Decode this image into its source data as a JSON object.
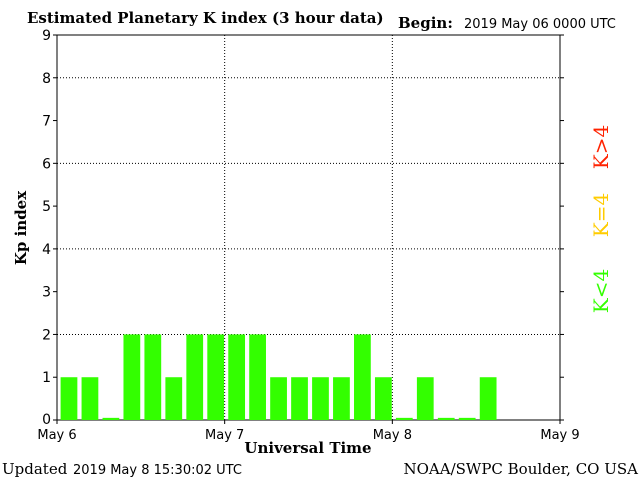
{
  "header": {
    "title": "Estimated Planetary K index (3 hour data)",
    "begin_label": "Begin:",
    "begin_value": "2019 May 06 0000 UTC"
  },
  "footer": {
    "updated_label": "Updated",
    "updated_value": "2019 May  8 15:30:02 UTC",
    "credit": "NOAA/SWPC Boulder, CO USA"
  },
  "legend": {
    "high_label": "K>4",
    "mid_label": "K=4",
    "low_label": "K<4"
  },
  "colors": {
    "bar": "#33ff00",
    "high": "#ff2200",
    "mid": "#ffcc00",
    "low": "#33ff00",
    "axis": "#000000",
    "grid": "#000000"
  },
  "chart_data": {
    "type": "bar",
    "title": "Estimated Planetary K index (3 hour data)",
    "xlabel": "Universal Time",
    "ylabel": "Kp index",
    "ylim": [
      0,
      9
    ],
    "yticks": [
      0,
      1,
      2,
      3,
      4,
      5,
      6,
      7,
      8,
      9
    ],
    "ytick_labels": [
      "0",
      "1",
      "2",
      "3",
      "4",
      "5",
      "6",
      "7",
      "8",
      "9"
    ],
    "xticks": [
      "May 6",
      "May 7",
      "May 8",
      "May 9"
    ],
    "xlim_hours": [
      0,
      72
    ],
    "interval_hours": 3,
    "grid": "dotted at y=2,4,6,8 and at each day boundary",
    "values": [
      1,
      1,
      0.05,
      2,
      2,
      1,
      2,
      2,
      2,
      2,
      1,
      1,
      1,
      1,
      2,
      1,
      0.05,
      1,
      0.05,
      0.05,
      1
    ]
  }
}
